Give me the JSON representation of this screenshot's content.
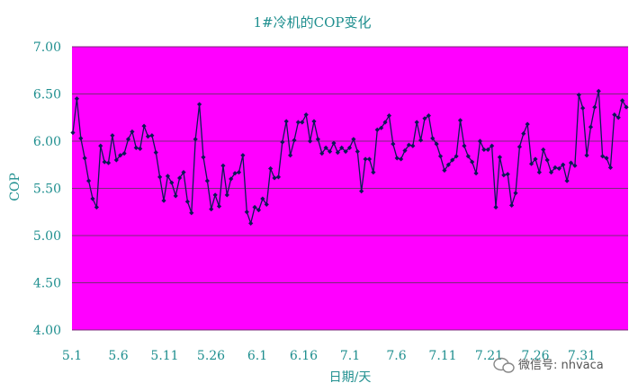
{
  "chart_data": {
    "type": "line",
    "title": "1#冷机的COP变化",
    "xlabel": "日期/天",
    "ylabel": "COP",
    "ylim": [
      4.0,
      7.0
    ],
    "yticks": [
      "4.00",
      "4.50",
      "5.00",
      "5.50",
      "6.00",
      "6.50",
      "7.00"
    ],
    "grid": "horizontal",
    "x_tick_labels": [
      "5.1",
      "5.6",
      "5.11",
      "5.26",
      "6.1",
      "6.16",
      "7.1",
      "7.6",
      "7.11",
      "7.21",
      "7.26",
      "7.31"
    ],
    "series": [
      {
        "values": [
          6.09,
          6.45,
          6.03,
          5.82,
          5.58,
          5.39,
          5.3,
          5.95,
          5.78,
          5.77,
          6.06,
          5.8,
          5.85,
          5.87,
          6.02,
          6.1,
          5.93,
          5.92,
          6.16,
          6.05,
          6.06,
          5.88,
          5.62,
          5.37,
          5.63,
          5.56,
          5.42,
          5.61,
          5.67,
          5.36,
          5.24,
          6.02,
          6.39,
          5.83,
          5.58,
          5.28,
          5.43,
          5.31,
          5.74,
          5.43,
          5.6,
          5.66,
          5.67,
          5.85,
          5.25,
          5.13,
          5.3,
          5.27,
          5.39,
          5.33,
          5.71,
          5.61,
          5.62,
          5.99,
          6.21,
          5.85,
          6.01,
          6.2,
          6.2,
          6.28,
          6.0,
          6.21,
          6.02,
          5.87,
          5.93,
          5.89,
          5.98,
          5.88,
          5.93,
          5.89,
          5.93,
          6.02,
          5.89,
          5.47,
          5.81,
          5.81,
          5.67,
          6.12,
          6.14,
          6.2,
          6.27,
          5.97,
          5.82,
          5.81,
          5.9,
          5.96,
          5.95,
          6.2,
          6.01,
          6.24,
          6.27,
          6.03,
          5.97,
          5.84,
          5.69,
          5.75,
          5.8,
          5.84,
          6.22,
          5.95,
          5.84,
          5.78,
          5.66,
          6.0,
          5.91,
          5.91,
          5.95,
          5.3,
          5.83,
          5.64,
          5.65,
          5.32,
          5.45,
          5.94,
          6.08,
          6.18,
          5.76,
          5.81,
          5.67,
          5.91,
          5.8,
          5.67,
          5.72,
          5.71,
          5.75,
          5.58,
          5.77,
          5.74,
          6.49,
          6.35,
          5.85,
          6.15,
          6.36,
          6.53,
          5.84,
          5.82,
          5.72,
          6.28,
          6.25,
          6.43,
          6.36
        ]
      }
    ],
    "colors": {
      "plot_bg": "#ff00ff",
      "line": "#0a1a55",
      "grid": "#7a2a7a",
      "text": "#1f8f8f"
    }
  },
  "watermark": {
    "text": "微信号: nhvaca",
    "icon": "wechat-icon"
  }
}
